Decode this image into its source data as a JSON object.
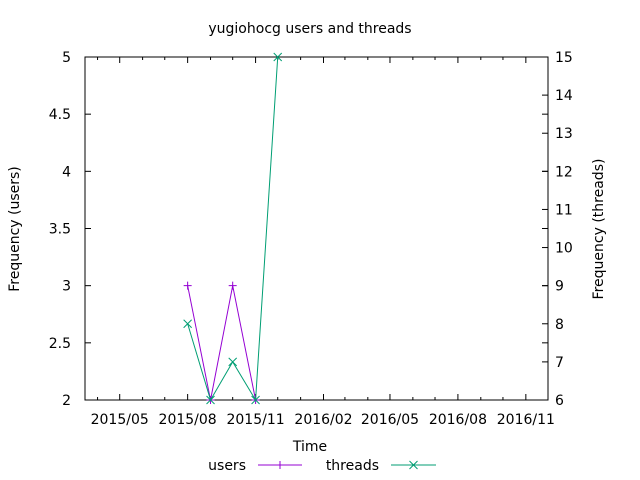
{
  "chart_data": {
    "type": "line",
    "title": "yugiohocg users and threads",
    "xlabel": "Time",
    "ylabel": "Frequency (users)",
    "y2label": "Frequency (threads)",
    "x_ticks": [
      "2015/05",
      "2015/08",
      "2015/11",
      "2016/02",
      "2016/05",
      "2016/08",
      "2016/11"
    ],
    "x_tick_dates": [
      "2015-05-01",
      "2015-08-01",
      "2015-11-01",
      "2016-02-01",
      "2016-05-01",
      "2016-08-01",
      "2016-11-01"
    ],
    "xlim": [
      "2015-03-15",
      "2016-12-01"
    ],
    "y_ticks": [
      "2",
      "2.5",
      "3",
      "3.5",
      "4",
      "4.5",
      "5"
    ],
    "y2_ticks": [
      "6",
      "7",
      "8",
      "9",
      "10",
      "11",
      "12",
      "13",
      "14",
      "15"
    ],
    "ylim": [
      2,
      5
    ],
    "y2lim": [
      6,
      15
    ],
    "legend_position": "bottom",
    "series": [
      {
        "name": "users",
        "axis": "left",
        "color": "#9400d3",
        "marker": "plus",
        "points": [
          {
            "x": "2015-08-01",
            "y": 3
          },
          {
            "x": "2015-09-01",
            "y": 2
          },
          {
            "x": "2015-10-01",
            "y": 3
          },
          {
            "x": "2015-11-01",
            "y": 2
          }
        ]
      },
      {
        "name": "threads",
        "axis": "right",
        "color": "#009e73",
        "marker": "cross",
        "points": [
          {
            "x": "2015-08-01",
            "y": 8
          },
          {
            "x": "2015-09-01",
            "y": 6
          },
          {
            "x": "2015-10-01",
            "y": 7
          },
          {
            "x": "2015-11-01",
            "y": 6
          },
          {
            "x": "2015-12-01",
            "y": 15
          }
        ]
      }
    ]
  }
}
